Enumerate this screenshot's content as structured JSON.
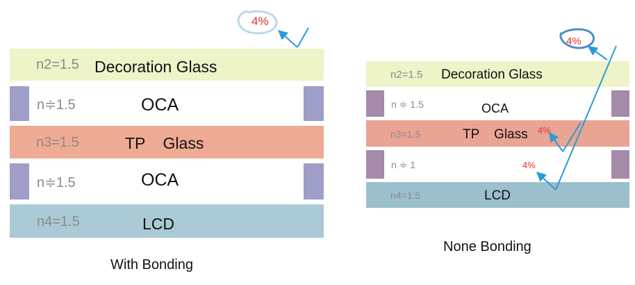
{
  "colors": {
    "decoration": "#eef3c8",
    "tp": "#efaa94",
    "tp_right": "#e9a493",
    "lcd": "#a9cad5",
    "lcd_right": "#9bbfcc",
    "pad_left": "#9f9ec8",
    "pad_right": "#a58aaa",
    "arrow": "#2a9ad8",
    "percent": "#e0302e"
  },
  "left": {
    "decoration": {
      "n": "n2=1.5",
      "label": "Decoration Glass"
    },
    "oca1": {
      "n": "n≑1.5",
      "label": "OCA"
    },
    "tp": {
      "n": "n3=1.5",
      "label": "TP    Glass"
    },
    "oca2": {
      "n": "n≑1.5",
      "label": "OCA"
    },
    "lcd": {
      "n": "n4=1.5",
      "label": "LCD"
    },
    "reflection": "4%",
    "caption": "With Bonding"
  },
  "right": {
    "decoration": {
      "n": "n2=1.5",
      "label": "Decoration Glass"
    },
    "oca": {
      "n": "n ≑ 1.5",
      "label": "OCA"
    },
    "tp": {
      "n": "n3=1.5",
      "label": "TP    Glass"
    },
    "air": {
      "n": "n ≑ 1",
      "label": ""
    },
    "lcd": {
      "n": "n4=1.5",
      "label": "LCD"
    },
    "reflection_top": "4%",
    "reflection_tp": "4%",
    "reflection_air": "4%",
    "caption": "None Bonding"
  }
}
